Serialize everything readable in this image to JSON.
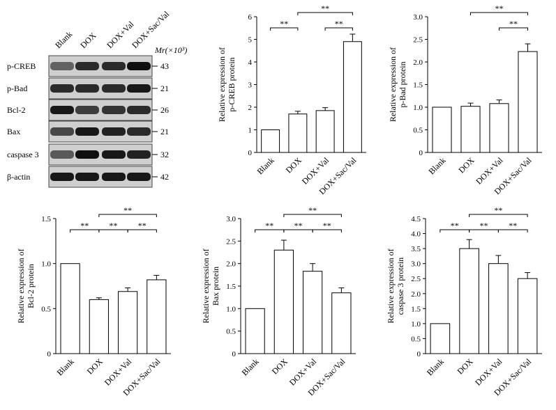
{
  "blot": {
    "lanes": [
      "Blank",
      "DOX",
      "DOX+Val",
      "DOX+Sac/Val"
    ],
    "mr_label": "Mr(×10³)",
    "proteins": [
      {
        "name": "p-CREB",
        "mr": "43",
        "intensity": [
          0.55,
          0.85,
          0.85,
          1.0
        ]
      },
      {
        "name": "p-Bad",
        "mr": "21",
        "intensity": [
          0.85,
          0.85,
          0.85,
          0.95
        ]
      },
      {
        "name": "Bcl-2",
        "mr": "26",
        "intensity": [
          0.95,
          0.75,
          0.8,
          0.85
        ]
      },
      {
        "name": "Bax",
        "mr": "21",
        "intensity": [
          0.7,
          0.95,
          0.9,
          0.85
        ]
      },
      {
        "name": "caspase 3",
        "mr": "32",
        "intensity": [
          0.6,
          1.0,
          0.95,
          0.9
        ]
      },
      {
        "name": "β-actin",
        "mr": "42",
        "intensity": [
          0.95,
          0.95,
          0.95,
          0.95
        ]
      }
    ]
  },
  "chart_data": [
    {
      "type": "bar",
      "categories": [
        "Blank",
        "DOX",
        "DOX+Val",
        "DOX+Sac/Val"
      ],
      "values": [
        1.0,
        1.7,
        1.85,
        4.9
      ],
      "errors": [
        0,
        0.12,
        0.13,
        0.33
      ],
      "ylabel": [
        "Relative expression of",
        "p-CREB protein"
      ],
      "ylim": [
        0,
        6
      ],
      "yticks": [
        "0",
        "1",
        "2",
        "3",
        "4",
        "5",
        "6"
      ],
      "significance": [
        {
          "from": 0,
          "to": 1,
          "label": "**",
          "level": 1
        },
        {
          "from": 2,
          "to": 3,
          "label": "**",
          "level": 1
        },
        {
          "from": 1,
          "to": 3,
          "label": "**",
          "level": 2
        }
      ]
    },
    {
      "type": "bar",
      "categories": [
        "Blank",
        "DOX",
        "DOX+Val",
        "DOX+Sac/Val"
      ],
      "values": [
        1.0,
        1.02,
        1.08,
        2.23
      ],
      "errors": [
        0,
        0.07,
        0.08,
        0.17
      ],
      "ylabel": [
        "Relative expression of",
        "p-Bad protein"
      ],
      "ylim": [
        0,
        3
      ],
      "yticks": [
        "0",
        "0.5",
        "1.0",
        "1.5",
        "2.0",
        "2.5",
        "3.0"
      ],
      "significance": [
        {
          "from": 2,
          "to": 3,
          "label": "**",
          "level": 1
        },
        {
          "from": 1,
          "to": 3,
          "label": "**",
          "level": 2
        }
      ]
    },
    {
      "type": "bar",
      "categories": [
        "Blank",
        "DOX",
        "DOX+Val",
        "DOX+Sac/Val"
      ],
      "values": [
        1.0,
        0.6,
        0.69,
        0.82
      ],
      "errors": [
        0,
        0.02,
        0.04,
        0.05
      ],
      "ylabel": [
        "Relative expression of",
        "Bcl-2 protein"
      ],
      "ylim": [
        0,
        1.5
      ],
      "yticks": [
        "0",
        "0.5",
        "1.0",
        "1.5"
      ],
      "significance": [
        {
          "from": 0,
          "to": 1,
          "label": "**",
          "level": 1
        },
        {
          "from": 1,
          "to": 2,
          "label": "**",
          "level": 1
        },
        {
          "from": 2,
          "to": 3,
          "label": "**",
          "level": 1
        },
        {
          "from": 1,
          "to": 3,
          "label": "**",
          "level": 2
        }
      ]
    },
    {
      "type": "bar",
      "categories": [
        "Blank",
        "DOX",
        "DOX+Val",
        "DOX+Sac/Val"
      ],
      "values": [
        1.0,
        2.3,
        1.83,
        1.35
      ],
      "errors": [
        0,
        0.22,
        0.17,
        0.11
      ],
      "ylabel": [
        "Relative expression of",
        "Bax protein"
      ],
      "ylim": [
        0,
        3
      ],
      "yticks": [
        "0",
        "0.5",
        "1.0",
        "1.5",
        "2.0",
        "2.5",
        "3.0"
      ],
      "significance": [
        {
          "from": 0,
          "to": 1,
          "label": "**",
          "level": 1
        },
        {
          "from": 1,
          "to": 2,
          "label": "**",
          "level": 1
        },
        {
          "from": 2,
          "to": 3,
          "label": "**",
          "level": 1
        },
        {
          "from": 1,
          "to": 3,
          "label": "**",
          "level": 2
        }
      ]
    },
    {
      "type": "bar",
      "categories": [
        "Blank",
        "DOX",
        "DOX+Val",
        "DOX+Sac/Val"
      ],
      "values": [
        1.0,
        3.5,
        3.0,
        2.5
      ],
      "errors": [
        0,
        0.3,
        0.27,
        0.2
      ],
      "ylabel": [
        "Relative expression of",
        "caspase 3 protein"
      ],
      "ylim": [
        0,
        4.5
      ],
      "yticks": [
        "0",
        "0.5",
        "1.0",
        "1.5",
        "2.0",
        "2.5",
        "3.0",
        "3.5",
        "4.0",
        "4.5"
      ],
      "significance": [
        {
          "from": 0,
          "to": 1,
          "label": "**",
          "level": 1
        },
        {
          "from": 1,
          "to": 2,
          "label": "**",
          "level": 1
        },
        {
          "from": 2,
          "to": 3,
          "label": "**",
          "level": 1
        },
        {
          "from": 1,
          "to": 3,
          "label": "**",
          "level": 2
        }
      ]
    }
  ]
}
